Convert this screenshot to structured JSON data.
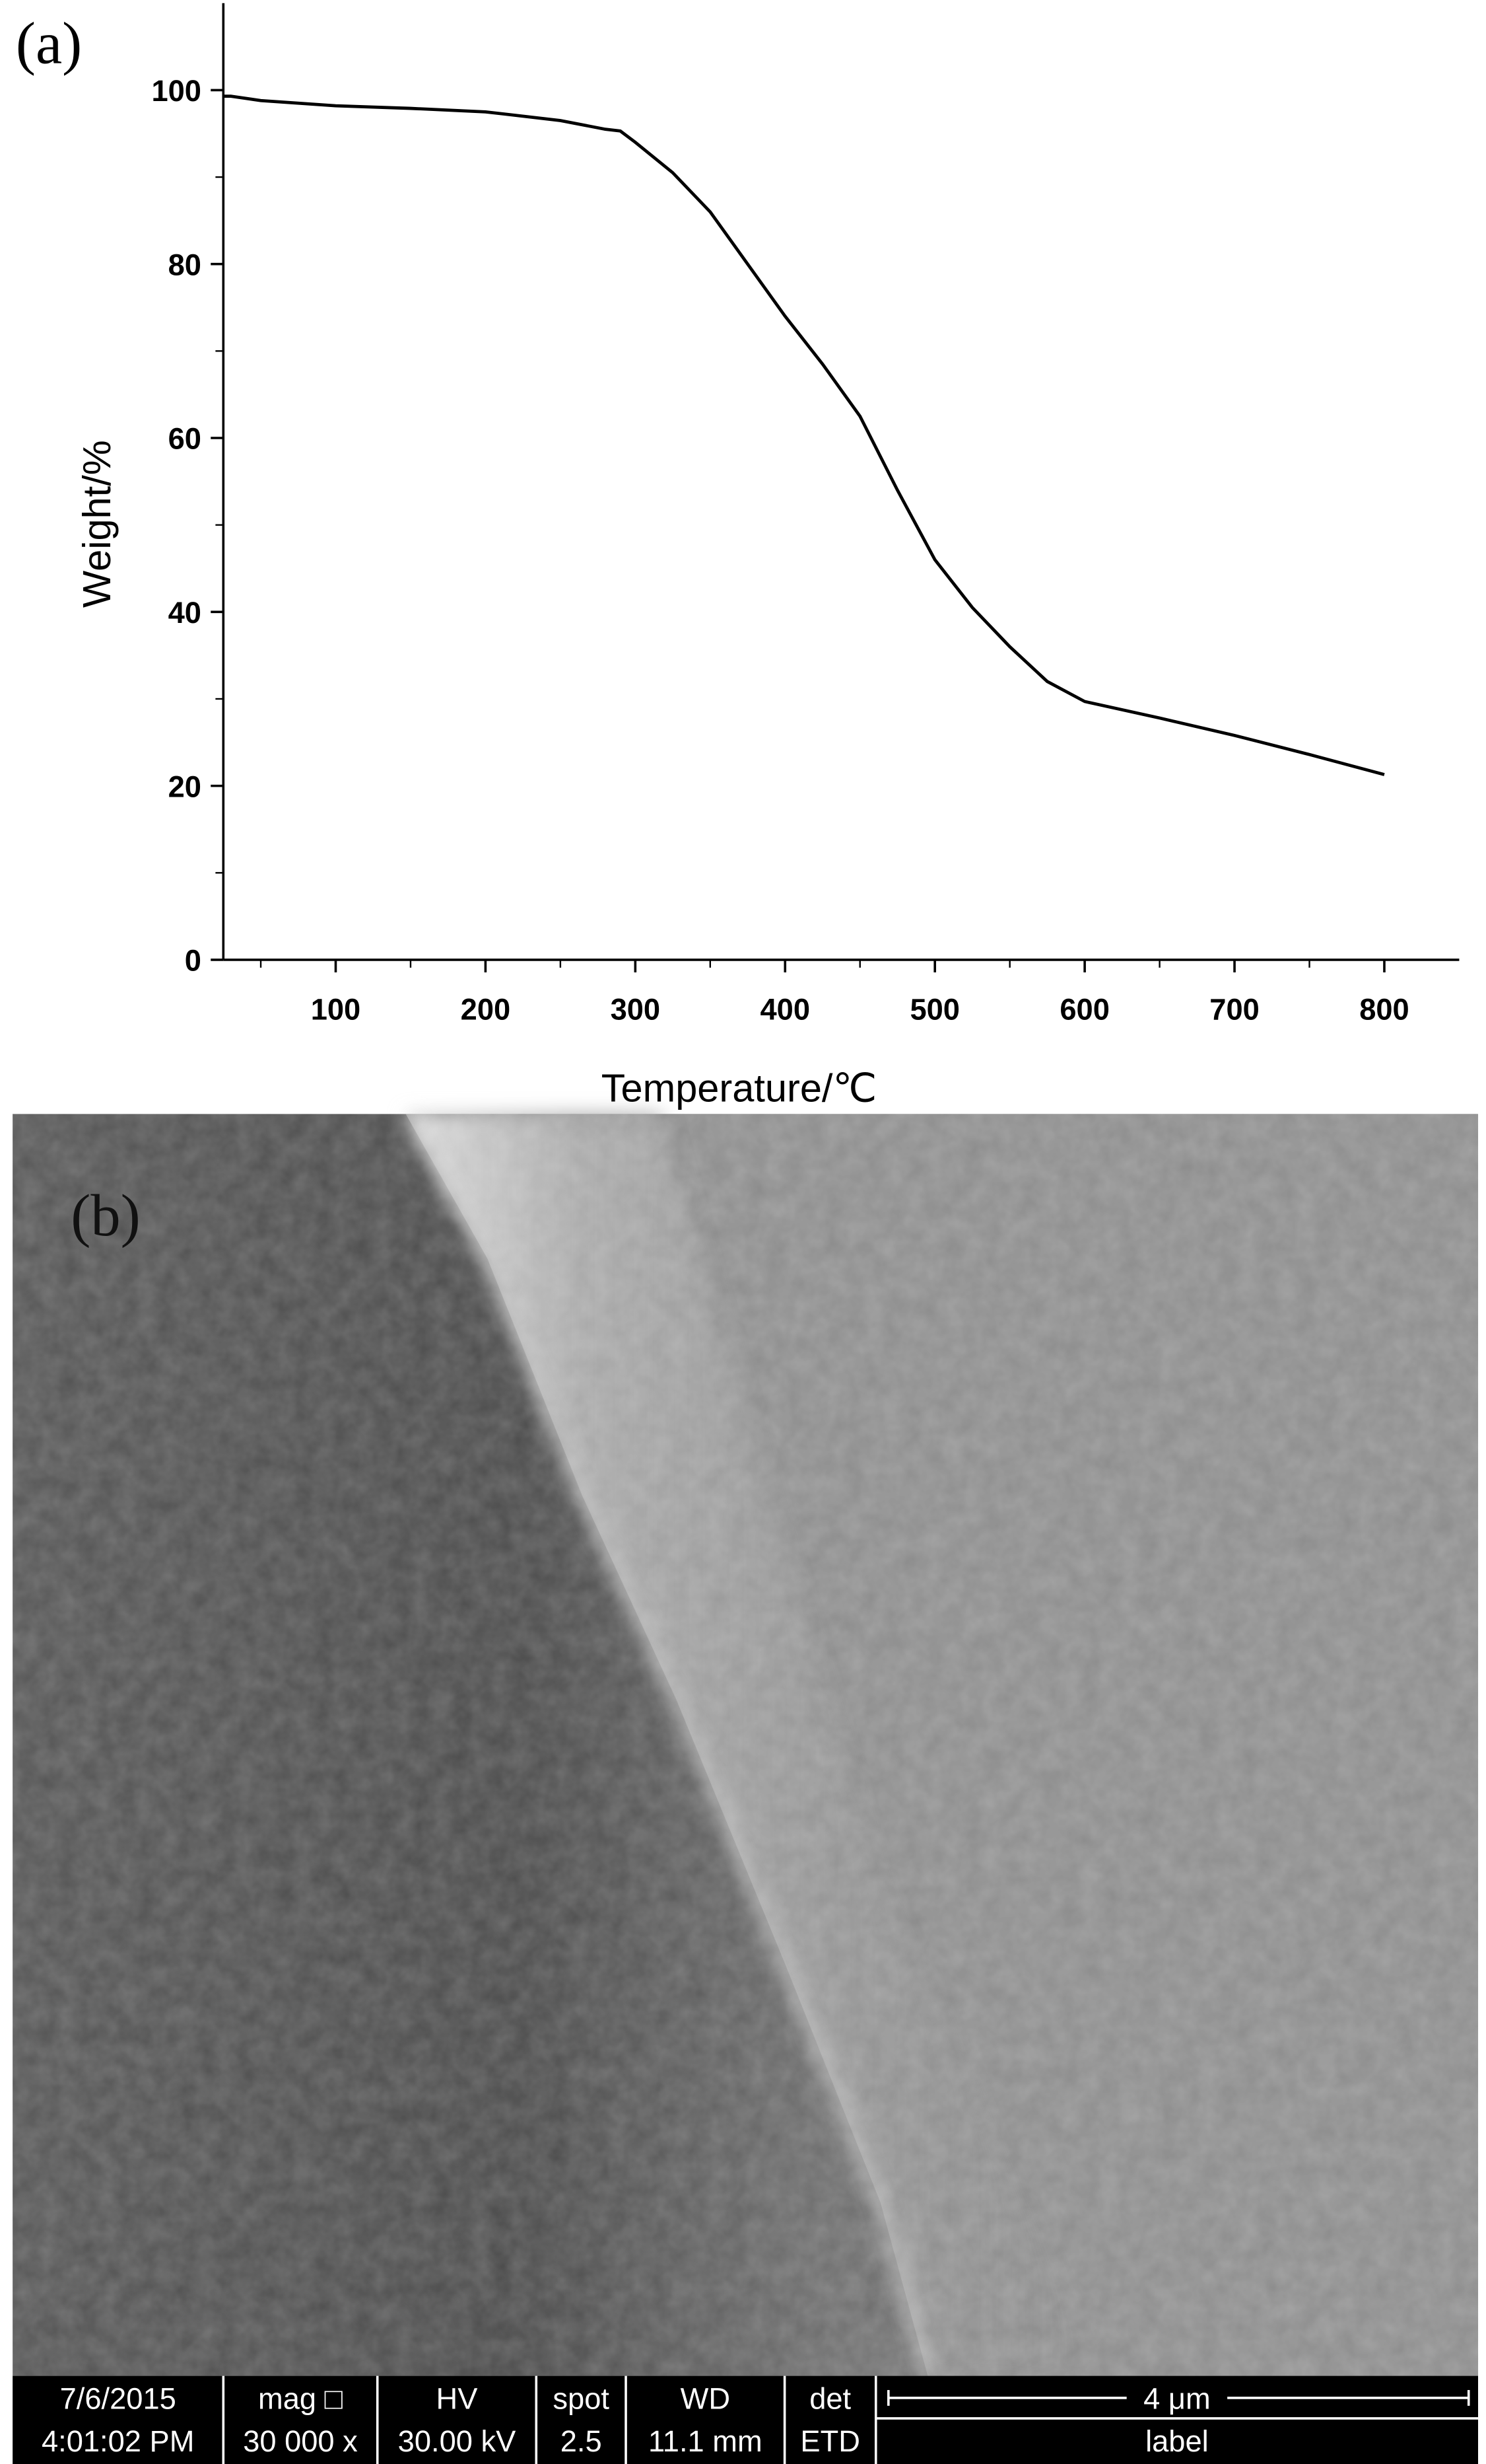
{
  "chart_data": {
    "type": "line",
    "panel_label": "(a)",
    "xlabel": "Temperature/℃",
    "ylabel": "Weight/%",
    "x": [
      25,
      30,
      50,
      100,
      150,
      200,
      250,
      280,
      290,
      300,
      325,
      350,
      375,
      400,
      425,
      450,
      475,
      500,
      525,
      550,
      575,
      600,
      650,
      700,
      750,
      800
    ],
    "series": [
      {
        "color": "#000000",
        "values": [
          99.3,
          99.3,
          98.8,
          98.2,
          97.9,
          97.5,
          96.5,
          95.5,
          95.3,
          94,
          90.5,
          86,
          80,
          74,
          68.5,
          62.5,
          54,
          46,
          40.5,
          36,
          32,
          29.7,
          27.8,
          25.8,
          23.6,
          21.3
        ]
      }
    ],
    "xlim": [
      25,
      850
    ],
    "ylim": [
      0,
      110
    ],
    "xticks": [
      100,
      200,
      300,
      400,
      500,
      600,
      700,
      800
    ],
    "yticks": [
      0,
      20,
      40,
      60,
      80,
      100
    ],
    "grid": false
  },
  "sem": {
    "panel_label": "(b)",
    "info_bar": [
      [
        "7/6/2015",
        "4:01:02 PM"
      ],
      [
        "mag □",
        "30 000 x"
      ],
      [
        "HV",
        "30.00 kV"
      ],
      [
        "spot",
        "2.5"
      ],
      [
        "WD",
        "11.1 mm"
      ],
      [
        "det",
        "ETD"
      ],
      [
        "4 μm",
        "label"
      ]
    ]
  }
}
